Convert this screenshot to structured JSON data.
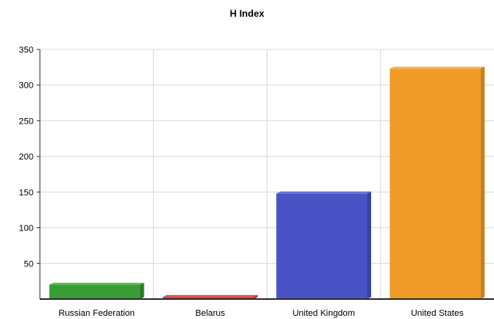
{
  "chart_data": {
    "type": "bar",
    "title": "H Index",
    "xlabel": "",
    "ylabel": "",
    "categories": [
      "Russian Federation",
      "Belarus",
      "United Kingdom",
      "United States"
    ],
    "values": [
      20,
      3,
      148,
      323
    ],
    "colors": [
      "#3a9c35",
      "#c93a3a",
      "#4a53c6",
      "#f09a27"
    ],
    "side_colors": [
      "#2b7a27",
      "#9e2c2c",
      "#3a42a0",
      "#c77c1a"
    ],
    "top_colors": [
      "#56b851",
      "#e05656",
      "#6a72d8",
      "#f5b14d"
    ],
    "ylim": [
      0,
      350
    ],
    "yticks": [
      50,
      100,
      150,
      200,
      250,
      300,
      350
    ],
    "ytick_labels": [
      "50",
      "100",
      "150",
      "200",
      "250",
      "300",
      "350"
    ],
    "grid": true,
    "legend": "none"
  }
}
